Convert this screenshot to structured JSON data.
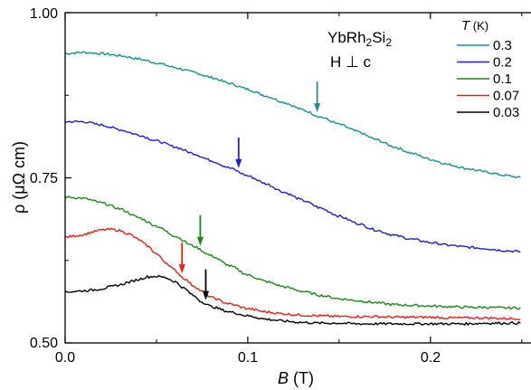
{
  "chart_data": {
    "type": "line",
    "xlabel": "B (T)",
    "ylabel": "ρ (μΩ cm)",
    "xlim": [
      0,
      0.25
    ],
    "ylim": [
      0.5,
      1.0
    ],
    "x_ticks": [
      "0.0",
      "0.1",
      "0.2"
    ],
    "y_ticks": [
      "0.50",
      "0.75",
      "1.00"
    ],
    "grid": false,
    "legend_title": "T (K)",
    "legend_position": "top-right",
    "annotations": [
      "YbRh2Si2",
      "H ⊥ c"
    ],
    "series": [
      {
        "name": "0.3",
        "color": "#1a9090",
        "x": [
          0.0,
          0.01,
          0.02,
          0.03,
          0.04,
          0.05,
          0.06,
          0.07,
          0.08,
          0.09,
          0.1,
          0.11,
          0.12,
          0.13,
          0.14,
          0.15,
          0.16,
          0.17,
          0.18,
          0.19,
          0.2,
          0.21,
          0.22,
          0.23,
          0.24,
          0.25
        ],
        "y": [
          0.938,
          0.94,
          0.938,
          0.935,
          0.93,
          0.924,
          0.917,
          0.91,
          0.902,
          0.893,
          0.884,
          0.874,
          0.864,
          0.853,
          0.842,
          0.831,
          0.82,
          0.808,
          0.797,
          0.787,
          0.778,
          0.77,
          0.764,
          0.759,
          0.754,
          0.75
        ],
        "arrow_x": 0.138
      },
      {
        "name": "0.2",
        "color": "#1f1fd8",
        "x": [
          0.0,
          0.01,
          0.02,
          0.03,
          0.04,
          0.05,
          0.06,
          0.07,
          0.08,
          0.09,
          0.1,
          0.11,
          0.12,
          0.13,
          0.14,
          0.15,
          0.16,
          0.17,
          0.18,
          0.19,
          0.2,
          0.21,
          0.22,
          0.23,
          0.24,
          0.25
        ],
        "y": [
          0.835,
          0.835,
          0.83,
          0.823,
          0.815,
          0.806,
          0.797,
          0.787,
          0.776,
          0.765,
          0.753,
          0.741,
          0.728,
          0.716,
          0.704,
          0.692,
          0.681,
          0.671,
          0.663,
          0.657,
          0.652,
          0.648,
          0.645,
          0.643,
          0.64,
          0.638
        ],
        "arrow_x": 0.095
      },
      {
        "name": "0.1",
        "color": "#1b8a1b",
        "x": [
          0.0,
          0.01,
          0.02,
          0.03,
          0.04,
          0.05,
          0.06,
          0.07,
          0.08,
          0.09,
          0.1,
          0.11,
          0.12,
          0.13,
          0.14,
          0.15,
          0.16,
          0.17,
          0.18,
          0.19,
          0.2,
          0.21,
          0.22,
          0.23,
          0.24,
          0.25
        ],
        "y": [
          0.721,
          0.719,
          0.712,
          0.703,
          0.69,
          0.677,
          0.662,
          0.647,
          0.632,
          0.617,
          0.603,
          0.593,
          0.585,
          0.578,
          0.572,
          0.567,
          0.564,
          0.561,
          0.558,
          0.557,
          0.556,
          0.555,
          0.554,
          0.554,
          0.553,
          0.553
        ],
        "arrow_x": 0.074
      },
      {
        "name": "0.07",
        "color": "#e8201c",
        "x": [
          0.0,
          0.005,
          0.01,
          0.015,
          0.02,
          0.025,
          0.03,
          0.035,
          0.04,
          0.045,
          0.05,
          0.055,
          0.06,
          0.065,
          0.07,
          0.075,
          0.08,
          0.09,
          0.1,
          0.11,
          0.12,
          0.13,
          0.14,
          0.15,
          0.16,
          0.17,
          0.18,
          0.19,
          0.2,
          0.21,
          0.22,
          0.23,
          0.24,
          0.25
        ],
        "y": [
          0.66,
          0.662,
          0.664,
          0.668,
          0.671,
          0.672,
          0.67,
          0.665,
          0.657,
          0.647,
          0.635,
          0.622,
          0.61,
          0.598,
          0.587,
          0.578,
          0.569,
          0.559,
          0.552,
          0.547,
          0.544,
          0.542,
          0.541,
          0.54,
          0.54,
          0.54,
          0.539,
          0.539,
          0.539,
          0.538,
          0.538,
          0.538,
          0.537,
          0.537
        ],
        "arrow_x": 0.064
      },
      {
        "name": "0.03",
        "color": "#000000",
        "x": [
          0.0,
          0.005,
          0.01,
          0.015,
          0.02,
          0.025,
          0.03,
          0.035,
          0.04,
          0.045,
          0.05,
          0.055,
          0.06,
          0.065,
          0.07,
          0.075,
          0.08,
          0.09,
          0.1,
          0.11,
          0.12,
          0.13,
          0.14,
          0.15,
          0.16,
          0.17,
          0.18,
          0.19,
          0.2,
          0.21,
          0.22,
          0.23,
          0.24,
          0.25
        ],
        "y": [
          0.577,
          0.578,
          0.579,
          0.58,
          0.582,
          0.585,
          0.588,
          0.592,
          0.596,
          0.6,
          0.601,
          0.599,
          0.593,
          0.583,
          0.572,
          0.562,
          0.555,
          0.547,
          0.541,
          0.536,
          0.533,
          0.531,
          0.53,
          0.53,
          0.529,
          0.529,
          0.529,
          0.529,
          0.529,
          0.529,
          0.529,
          0.53,
          0.53,
          0.53
        ],
        "arrow_x": 0.077
      }
    ]
  }
}
